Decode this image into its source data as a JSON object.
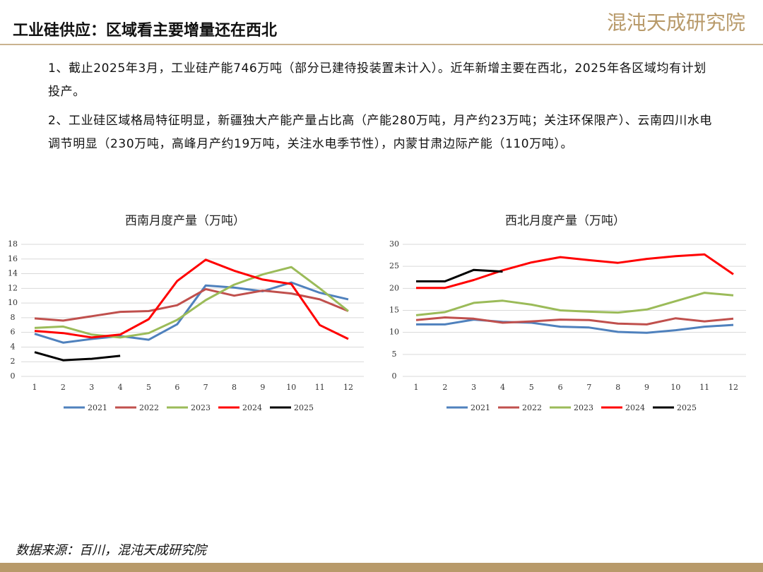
{
  "header": {
    "title": "工业硅供应：区域看主要增量还在西北",
    "logo": "混沌天成研究院"
  },
  "paragraphs": [
    "1、截止2025年3月，工业硅产能746万吨（部分已建待投装置未计入）。近年新增主要在西北，2025年各区域均有计划投产。",
    "2、工业硅区域格局特征明显，新疆独大产能产量占比高（产能280万吨，月产约23万吨；关注环保限产）、云南四川水电调节明显（230万吨，高峰月产约19万吨，关注水电季节性），内蒙甘肃边际产能（110万吨）。"
  ],
  "chart_data": [
    {
      "type": "line",
      "title": "西南月度产量（万吨）",
      "categories": [
        "1",
        "2",
        "3",
        "4",
        "5",
        "6",
        "7",
        "8",
        "9",
        "10",
        "11",
        "12"
      ],
      "ylim": [
        0,
        18
      ],
      "yticks": [
        0,
        2,
        4,
        6,
        8,
        10,
        12,
        14,
        16,
        18
      ],
      "grid": true,
      "legend": "bottom",
      "series": [
        {
          "name": "2021",
          "color": "#4f81bd",
          "values": [
            5.8,
            4.6,
            5.1,
            5.5,
            5.0,
            7.1,
            12.4,
            12.1,
            11.6,
            12.8,
            11.4,
            10.5
          ]
        },
        {
          "name": "2022",
          "color": "#c0504d",
          "values": [
            7.9,
            7.6,
            8.2,
            8.8,
            8.9,
            9.7,
            11.9,
            11.0,
            11.7,
            11.3,
            10.5,
            8.9
          ]
        },
        {
          "name": "2023",
          "color": "#9bbb59",
          "values": [
            6.6,
            6.8,
            5.7,
            5.3,
            5.9,
            7.7,
            10.4,
            12.5,
            13.9,
            14.9,
            12.0,
            8.9
          ]
        },
        {
          "name": "2024",
          "color": "#ff0000",
          "values": [
            6.2,
            5.9,
            5.3,
            5.7,
            7.8,
            13.0,
            15.9,
            14.4,
            13.2,
            12.6,
            7.0,
            5.1
          ]
        },
        {
          "name": "2025",
          "color": "#000000",
          "values": [
            3.3,
            2.2,
            2.4,
            2.8,
            null,
            null,
            null,
            null,
            null,
            null,
            null,
            null
          ]
        }
      ]
    },
    {
      "type": "line",
      "title": "西北月度产量（万吨）",
      "categories": [
        "1",
        "2",
        "3",
        "4",
        "5",
        "6",
        "7",
        "8",
        "9",
        "10",
        "11",
        "12"
      ],
      "ylim": [
        0,
        30
      ],
      "yticks": [
        0,
        5,
        10,
        15,
        20,
        25,
        30
      ],
      "grid": true,
      "legend": "bottom",
      "series": [
        {
          "name": "2021",
          "color": "#4f81bd",
          "values": [
            11.8,
            11.8,
            12.9,
            12.4,
            12.2,
            11.3,
            11.1,
            10.1,
            9.9,
            10.5,
            11.3,
            11.7
          ]
        },
        {
          "name": "2022",
          "color": "#c0504d",
          "values": [
            12.8,
            13.4,
            13.1,
            12.2,
            12.5,
            12.9,
            12.8,
            12.0,
            11.8,
            13.2,
            12.5,
            13.1
          ]
        },
        {
          "name": "2023",
          "color": "#9bbb59",
          "values": [
            13.9,
            14.6,
            16.7,
            17.2,
            16.3,
            15.0,
            14.7,
            14.5,
            15.2,
            17.1,
            19.0,
            18.4
          ]
        },
        {
          "name": "2024",
          "color": "#ff0000",
          "values": [
            20.1,
            20.1,
            21.9,
            24.1,
            25.9,
            27.1,
            26.4,
            25.8,
            26.7,
            27.3,
            27.7,
            23.2
          ]
        },
        {
          "name": "2025",
          "color": "#000000",
          "values": [
            21.6,
            21.6,
            24.2,
            23.8,
            null,
            null,
            null,
            null,
            null,
            null,
            null,
            null
          ]
        }
      ]
    }
  ],
  "source": "数据来源：百川，混沌天成研究院"
}
